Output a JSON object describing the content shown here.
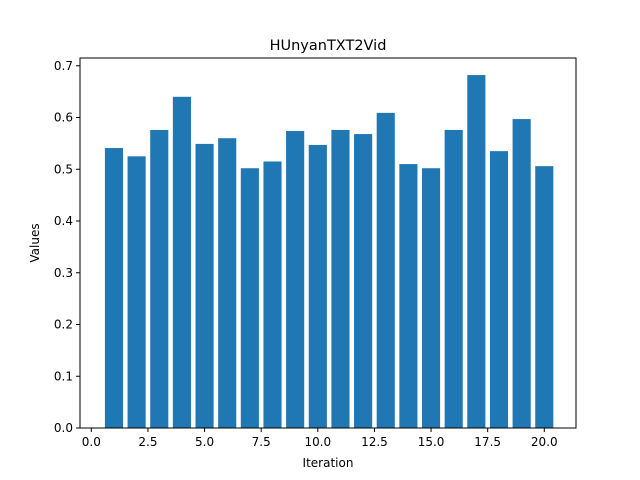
{
  "chart_data": {
    "type": "bar",
    "title": "HUnyanTXT2Vid",
    "xlabel": "Iteration",
    "ylabel": "Values",
    "x": [
      1,
      2,
      3,
      4,
      5,
      6,
      7,
      8,
      9,
      10,
      11,
      12,
      13,
      14,
      15,
      16,
      17,
      18,
      19,
      20
    ],
    "values": [
      0.541,
      0.525,
      0.576,
      0.64,
      0.549,
      0.56,
      0.502,
      0.515,
      0.574,
      0.547,
      0.576,
      0.568,
      0.609,
      0.51,
      0.502,
      0.576,
      0.682,
      0.535,
      0.597,
      0.506
    ],
    "xlim": [
      -0.5,
      21.4
    ],
    "ylim": [
      0,
      0.715
    ],
    "xticks": [
      0.0,
      2.5,
      5.0,
      7.5,
      10.0,
      12.5,
      15.0,
      17.5,
      20.0
    ],
    "xtick_labels": [
      "0.0",
      "2.5",
      "5.0",
      "7.5",
      "10.0",
      "12.5",
      "15.0",
      "17.5",
      "20.0"
    ],
    "yticks": [
      0.0,
      0.1,
      0.2,
      0.3,
      0.4,
      0.5,
      0.6,
      0.7
    ],
    "ytick_labels": [
      "0.0",
      "0.1",
      "0.2",
      "0.3",
      "0.4",
      "0.5",
      "0.6",
      "0.7"
    ],
    "bar_color": "#1f77b4",
    "grid": false,
    "legend": "none"
  }
}
